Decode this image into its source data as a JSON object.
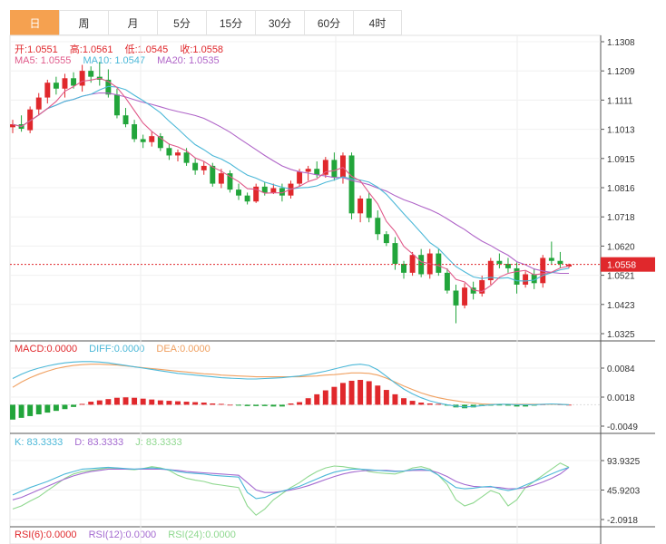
{
  "tabs": [
    "日",
    "周",
    "月",
    "5分",
    "15分",
    "30分",
    "60分",
    "4时"
  ],
  "active_tab": 0,
  "ohlc_info": {
    "open_label": "开",
    "open": "1.0551",
    "high_label": "高",
    "high": "1.0561",
    "low_label": "低",
    "low": "1.0545",
    "close_label": "收",
    "close": "1.0558"
  },
  "ma_info": {
    "ma5_label": "MA5",
    "ma5": "1.0555",
    "ma10_label": "MA10",
    "ma10": "1.0547",
    "ma20_label": "MA20",
    "ma20": "1.0535"
  },
  "macd_info": {
    "macd_label": "MACD",
    "macd": "0.0000",
    "diff_label": "DIFF",
    "diff": "0.0000",
    "dea_label": "DEA",
    "dea": "0.0000"
  },
  "kdj_info": {
    "k_label": "K",
    "k": "83.3333",
    "d_label": "D",
    "d": "83.3333",
    "j_label": "J",
    "j": "83.3333"
  },
  "rsi_info": {
    "rsi6_label": "RSI(6)",
    "rsi6": "0.0000",
    "rsi12_label": "RSI(12)",
    "rsi12": "0.0000",
    "rsi24_label": "RSI(24)",
    "rsi24": "0.0000"
  },
  "colors": {
    "up": "#e0282c",
    "down": "#22a53b",
    "ma5": "#e05a8a",
    "ma10": "#4cb8d8",
    "ma20": "#b065c8",
    "diff": "#4cb8d8",
    "dea": "#f0a060",
    "k": "#4cb8d8",
    "d": "#a46ad0",
    "j": "#8fd88f",
    "price_tag": "#e0282c"
  },
  "chart_data": [
    {
      "type": "candlestick",
      "y_ticks": [
        "1.1308",
        "1.1209",
        "1.1111",
        "1.1013",
        "1.0915",
        "1.0816",
        "1.0718",
        "1.0620",
        "1.0521",
        "1.0423",
        "1.0325"
      ],
      "ylim": [
        1.0325,
        1.1308
      ],
      "last_price": "1.0558",
      "candles": [
        {
          "o": 1.102,
          "h": 1.1045,
          "l": 1.1,
          "c": 1.103
        },
        {
          "o": 1.103,
          "h": 1.106,
          "l": 1.1005,
          "c": 1.1015
        },
        {
          "o": 1.101,
          "h": 1.109,
          "l": 1.1,
          "c": 1.108
        },
        {
          "o": 1.108,
          "h": 1.1135,
          "l": 1.106,
          "c": 1.112
        },
        {
          "o": 1.112,
          "h": 1.118,
          "l": 1.11,
          "c": 1.117
        },
        {
          "o": 1.117,
          "h": 1.119,
          "l": 1.113,
          "c": 1.115
        },
        {
          "o": 1.115,
          "h": 1.12,
          "l": 1.112,
          "c": 1.1185
        },
        {
          "o": 1.1185,
          "h": 1.1205,
          "l": 1.115,
          "c": 1.116
        },
        {
          "o": 1.116,
          "h": 1.123,
          "l": 1.114,
          "c": 1.121
        },
        {
          "o": 1.121,
          "h": 1.1225,
          "l": 1.117,
          "c": 1.119
        },
        {
          "o": 1.119,
          "h": 1.124,
          "l": 1.116,
          "c": 1.118
        },
        {
          "o": 1.118,
          "h": 1.1215,
          "l": 1.112,
          "c": 1.113
        },
        {
          "o": 1.113,
          "h": 1.115,
          "l": 1.105,
          "c": 1.106
        },
        {
          "o": 1.106,
          "h": 1.1085,
          "l": 1.102,
          "c": 1.103
        },
        {
          "o": 1.103,
          "h": 1.1045,
          "l": 1.097,
          "c": 1.098
        },
        {
          "o": 1.098,
          "h": 1.0995,
          "l": 1.095,
          "c": 1.097
        },
        {
          "o": 1.097,
          "h": 1.1005,
          "l": 1.0955,
          "c": 1.099
        },
        {
          "o": 1.099,
          "h": 1.1,
          "l": 1.094,
          "c": 1.095
        },
        {
          "o": 1.095,
          "h": 1.0965,
          "l": 1.091,
          "c": 1.0925
        },
        {
          "o": 1.0925,
          "h": 1.0945,
          "l": 1.0905,
          "c": 1.0935
        },
        {
          "o": 1.0935,
          "h": 1.095,
          "l": 1.089,
          "c": 1.09
        },
        {
          "o": 1.09,
          "h": 1.0915,
          "l": 1.086,
          "c": 1.0875
        },
        {
          "o": 1.0875,
          "h": 1.0905,
          "l": 1.086,
          "c": 1.089
        },
        {
          "o": 1.089,
          "h": 1.09,
          "l": 1.082,
          "c": 1.083
        },
        {
          "o": 1.083,
          "h": 1.088,
          "l": 1.0815,
          "c": 1.0865
        },
        {
          "o": 1.0865,
          "h": 1.0875,
          "l": 1.08,
          "c": 1.081
        },
        {
          "o": 1.081,
          "h": 1.083,
          "l": 1.0775,
          "c": 1.079
        },
        {
          "o": 1.079,
          "h": 1.08,
          "l": 1.076,
          "c": 1.077
        },
        {
          "o": 1.077,
          "h": 1.083,
          "l": 1.0765,
          "c": 1.082
        },
        {
          "o": 1.082,
          "h": 1.0835,
          "l": 1.079,
          "c": 1.08
        },
        {
          "o": 1.08,
          "h": 1.083,
          "l": 1.0795,
          "c": 1.0815
        },
        {
          "o": 1.0815,
          "h": 1.083,
          "l": 1.077,
          "c": 1.079
        },
        {
          "o": 1.079,
          "h": 1.084,
          "l": 1.078,
          "c": 1.083
        },
        {
          "o": 1.083,
          "h": 1.088,
          "l": 1.082,
          "c": 1.087
        },
        {
          "o": 1.087,
          "h": 1.089,
          "l": 1.084,
          "c": 1.088
        },
        {
          "o": 1.088,
          "h": 1.0905,
          "l": 1.085,
          "c": 1.086
        },
        {
          "o": 1.086,
          "h": 1.092,
          "l": 1.085,
          "c": 1.091
        },
        {
          "o": 1.091,
          "h": 1.0935,
          "l": 1.084,
          "c": 1.085
        },
        {
          "o": 1.085,
          "h": 1.0935,
          "l": 1.083,
          "c": 1.0925
        },
        {
          "o": 1.0925,
          "h": 1.0935,
          "l": 1.071,
          "c": 1.073
        },
        {
          "o": 1.073,
          "h": 1.079,
          "l": 1.07,
          "c": 1.078
        },
        {
          "o": 1.078,
          "h": 1.08,
          "l": 1.07,
          "c": 1.0715
        },
        {
          "o": 1.0715,
          "h": 1.074,
          "l": 1.064,
          "c": 1.066
        },
        {
          "o": 1.066,
          "h": 1.067,
          "l": 1.062,
          "c": 1.063
        },
        {
          "o": 1.063,
          "h": 1.065,
          "l": 1.054,
          "c": 1.056
        },
        {
          "o": 1.056,
          "h": 1.057,
          "l": 1.051,
          "c": 1.053
        },
        {
          "o": 1.053,
          "h": 1.06,
          "l": 1.052,
          "c": 1.059
        },
        {
          "o": 1.059,
          "h": 1.061,
          "l": 1.0515,
          "c": 1.0525
        },
        {
          "o": 1.0525,
          "h": 1.061,
          "l": 1.051,
          "c": 1.0595
        },
        {
          "o": 1.0595,
          "h": 1.061,
          "l": 1.052,
          "c": 1.053
        },
        {
          "o": 1.053,
          "h": 1.0545,
          "l": 1.046,
          "c": 1.047
        },
        {
          "o": 1.047,
          "h": 1.049,
          "l": 1.036,
          "c": 1.042
        },
        {
          "o": 1.042,
          "h": 1.0495,
          "l": 1.041,
          "c": 1.048
        },
        {
          "o": 1.048,
          "h": 1.05,
          "l": 1.044,
          "c": 1.046
        },
        {
          "o": 1.046,
          "h": 1.052,
          "l": 1.045,
          "c": 1.0505
        },
        {
          "o": 1.0505,
          "h": 1.058,
          "l": 1.049,
          "c": 1.057
        },
        {
          "o": 1.057,
          "h": 1.0595,
          "l": 1.0545,
          "c": 1.056
        },
        {
          "o": 1.056,
          "h": 1.058,
          "l": 1.053,
          "c": 1.0545
        },
        {
          "o": 1.0545,
          "h": 1.0565,
          "l": 1.046,
          "c": 1.049
        },
        {
          "o": 1.049,
          "h": 1.0535,
          "l": 1.048,
          "c": 1.0525
        },
        {
          "o": 1.0525,
          "h": 1.0545,
          "l": 1.0475,
          "c": 1.0495
        },
        {
          "o": 1.0495,
          "h": 1.059,
          "l": 1.048,
          "c": 1.058
        },
        {
          "o": 1.058,
          "h": 1.0635,
          "l": 1.056,
          "c": 1.057
        },
        {
          "o": 1.057,
          "h": 1.06,
          "l": 1.0545,
          "c": 1.056
        },
        {
          "o": 1.0551,
          "h": 1.0561,
          "l": 1.0545,
          "c": 1.0558
        }
      ]
    },
    {
      "type": "bar",
      "name": "MACD",
      "y_ticks": [
        "0.0084",
        "0.0018",
        "-0.0049"
      ],
      "ylim": [
        -0.0049,
        0.0084
      ],
      "histogram": [
        -0.0034,
        -0.003,
        -0.0026,
        -0.0022,
        -0.0018,
        -0.0014,
        -0.001,
        -0.0005,
        0.0002,
        0.0007,
        0.001,
        0.0013,
        0.0016,
        0.0017,
        0.0016,
        0.0014,
        0.0012,
        0.001,
        0.0009,
        0.0008,
        0.0007,
        0.0006,
        0.0005,
        0.0003,
        0.0002,
        0.0,
        -0.0002,
        -0.0003,
        -0.0003,
        -0.0003,
        -0.0004,
        -0.0004,
        0.0003,
        0.0006,
        0.0015,
        0.0024,
        0.0033,
        0.0041,
        0.005,
        0.0055,
        0.0057,
        0.0054,
        0.0044,
        0.0034,
        0.0024,
        0.0015,
        0.0009,
        0.0005,
        0.0003,
        0.0002,
        -0.0002,
        -0.0006,
        -0.0008,
        -0.0006,
        -0.0003,
        -0.0002,
        -0.0001,
        -0.0002,
        -0.0004,
        -0.0004,
        -0.0002,
        0.0001,
        0.0002,
        0.0001,
        0.0
      ],
      "diff": [
        0.006,
        0.007,
        0.0078,
        0.0084,
        0.0089,
        0.0093,
        0.0096,
        0.0098,
        0.0099,
        0.0099,
        0.0098,
        0.0096,
        0.0093,
        0.009,
        0.0087,
        0.0084,
        0.0081,
        0.0078,
        0.0075,
        0.0072,
        0.007,
        0.0068,
        0.0066,
        0.0064,
        0.0062,
        0.0061,
        0.006,
        0.0059,
        0.0059,
        0.006,
        0.0061,
        0.0062,
        0.0064,
        0.0066,
        0.0069,
        0.0073,
        0.0077,
        0.0082,
        0.0087,
        0.0091,
        0.0093,
        0.009,
        0.008,
        0.0065,
        0.005,
        0.0036,
        0.0025,
        0.0016,
        0.0009,
        0.0004,
        0.0,
        -0.0003,
        -0.0005,
        -0.0004,
        -0.0002,
        0.0,
        0.0001,
        0.0001,
        0.0,
        0.0,
        0.0,
        0.0001,
        0.0002,
        0.0001,
        0.0
      ],
      "dea": [
        0.004,
        0.0052,
        0.0062,
        0.007,
        0.0077,
        0.0083,
        0.0087,
        0.009,
        0.0092,
        0.0093,
        0.0093,
        0.0092,
        0.0091,
        0.0089,
        0.0087,
        0.0085,
        0.0083,
        0.0081,
        0.0079,
        0.0077,
        0.0075,
        0.0073,
        0.0071,
        0.007,
        0.0068,
        0.0067,
        0.0066,
        0.0065,
        0.0064,
        0.0064,
        0.0064,
        0.0064,
        0.0064,
        0.0064,
        0.0065,
        0.0066,
        0.0068,
        0.0069,
        0.0071,
        0.0073,
        0.0073,
        0.0072,
        0.0068,
        0.0061,
        0.0052,
        0.0043,
        0.0035,
        0.0027,
        0.0021,
        0.0016,
        0.0012,
        0.0009,
        0.0006,
        0.0004,
        0.0002,
        0.0001,
        0.0001,
        0.0001,
        0.0001,
        0.0001,
        0.0001,
        0.0001,
        0.0001,
        0.0001,
        0.0
      ]
    },
    {
      "type": "line",
      "name": "KDJ",
      "y_ticks": [
        "93.9325",
        "45.9203",
        "-2.0918"
      ],
      "ylim": [
        -2.0918,
        93.9325
      ],
      "k": [
        38,
        44,
        50,
        55,
        60,
        66,
        72,
        76,
        80,
        81,
        82,
        83,
        82,
        81,
        80,
        81,
        82,
        81,
        79,
        76,
        74,
        73,
        72,
        70,
        69,
        68,
        67,
        42,
        32,
        34,
        40,
        44,
        48,
        52,
        58,
        64,
        70,
        75,
        78,
        80,
        80,
        79,
        78,
        77,
        76,
        77,
        79,
        80,
        78,
        70,
        60,
        50,
        48,
        49,
        51,
        52,
        48,
        45,
        48,
        54,
        60,
        66,
        72,
        78,
        83
      ],
      "d": [
        30,
        34,
        40,
        46,
        52,
        58,
        64,
        69,
        73,
        76,
        78,
        80,
        80,
        80,
        80,
        80,
        80,
        80,
        79,
        78,
        76,
        75,
        74,
        73,
        72,
        71,
        70,
        58,
        46,
        42,
        42,
        44,
        46,
        49,
        53,
        58,
        63,
        68,
        72,
        75,
        77,
        78,
        78,
        78,
        77,
        77,
        78,
        78,
        78,
        74,
        68,
        60,
        55,
        52,
        51,
        51,
        50,
        48,
        48,
        50,
        54,
        59,
        65,
        72,
        83
      ],
      "j": [
        15,
        20,
        28,
        35,
        45,
        55,
        65,
        72,
        76,
        78,
        80,
        82,
        81,
        80,
        79,
        81,
        84,
        82,
        78,
        70,
        65,
        62,
        60,
        56,
        54,
        52,
        50,
        20,
        5,
        15,
        30,
        40,
        50,
        58,
        68,
        76,
        82,
        85,
        84,
        82,
        80,
        76,
        74,
        73,
        72,
        76,
        82,
        84,
        80,
        70,
        55,
        30,
        20,
        25,
        35,
        45,
        40,
        20,
        30,
        50,
        60,
        70,
        80,
        90,
        83
      ]
    },
    {
      "type": "line",
      "name": "RSI",
      "series": []
    }
  ]
}
